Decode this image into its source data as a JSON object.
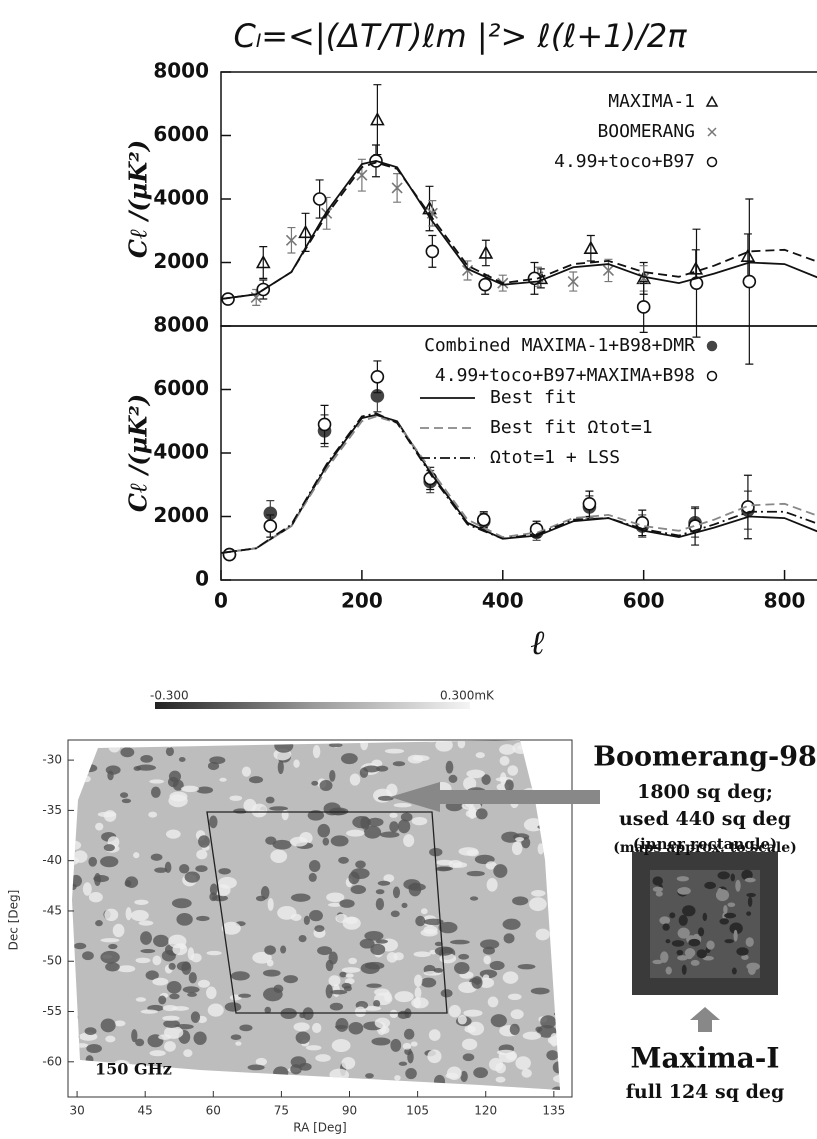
{
  "title": "Cₗ=<|(ΔT/T)ℓm |²> ℓ(ℓ+1)/2π",
  "chart_data": [
    {
      "type": "errorbar",
      "ylabel": "Cℓ /(μK²)",
      "xlim": [
        0,
        900
      ],
      "ylim": [
        0,
        8000
      ],
      "yticks": [
        2000,
        4000,
        6000,
        8000
      ],
      "legend": "upper right",
      "series": [
        {
          "name": "MAXIMA-1",
          "marker": "triangle",
          "color": "#111",
          "x": [
            60,
            120,
            222,
            296,
            376,
            454,
            525,
            600,
            674,
            748
          ],
          "values": [
            2000,
            2950,
            6500,
            3700,
            2300,
            1500,
            2450,
            1500,
            1800,
            2200
          ],
          "errors": [
            500,
            600,
            1100,
            700,
            400,
            300,
            400,
            500,
            600,
            700
          ]
        },
        {
          "name": "BOOMERANG",
          "marker": "x",
          "color": "#777",
          "x": [
            50,
            100,
            150,
            200,
            250,
            300,
            350,
            400,
            450,
            500,
            550,
            600
          ],
          "values": [
            900,
            2700,
            3550,
            4750,
            4350,
            3550,
            1750,
            1350,
            1550,
            1400,
            1750,
            1500
          ],
          "errors": [
            250,
            400,
            500,
            500,
            450,
            400,
            300,
            250,
            300,
            300,
            350,
            400
          ]
        },
        {
          "name": "4.99+toco+B97",
          "marker": "circle",
          "color": "#111",
          "x": [
            10,
            60,
            140,
            220,
            300,
            375,
            445,
            600,
            675,
            750
          ],
          "values": [
            850,
            1150,
            4000,
            5200,
            2350,
            1300,
            1500,
            600,
            1350,
            1400
          ],
          "errors": [
            150,
            300,
            600,
            500,
            500,
            300,
            500,
            800,
            1700,
            2600
          ]
        },
        {
          "line_style": "solid",
          "color": "#111",
          "x": [
            0,
            50,
            100,
            150,
            200,
            220,
            250,
            300,
            350,
            400,
            450,
            500,
            550,
            600,
            650,
            700,
            750,
            800,
            850,
            900
          ],
          "values": [
            850,
            1000,
            1700,
            3600,
            5100,
            5200,
            5000,
            3300,
            1800,
            1300,
            1400,
            1850,
            1950,
            1550,
            1350,
            1650,
            2000,
            1950,
            1500,
            1100
          ]
        },
        {
          "line_style": "dashed",
          "color": "#111",
          "x": [
            0,
            50,
            100,
            150,
            200,
            220,
            250,
            300,
            350,
            400,
            450,
            500,
            550,
            600,
            650,
            700,
            750,
            800,
            850,
            900
          ],
          "values": [
            850,
            1000,
            1700,
            3500,
            5000,
            5150,
            4950,
            3400,
            1900,
            1350,
            1500,
            1950,
            2050,
            1700,
            1550,
            1900,
            2350,
            2400,
            2000,
            1500
          ]
        }
      ]
    },
    {
      "type": "errorbar",
      "ylabel": "Cℓ /(μK²)",
      "xlabel": "ℓ",
      "xlim": [
        0,
        900
      ],
      "ylim": [
        0,
        8000
      ],
      "xticks": [
        0,
        200,
        400,
        600,
        800
      ],
      "yticks": [
        0,
        2000,
        4000,
        6000,
        8000
      ],
      "legend": "upper right",
      "series": [
        {
          "name": "Combined MAXIMA-1+B98+DMR",
          "marker": "filled-circle",
          "color": "#444",
          "x": [
            12,
            70,
            147,
            222,
            297,
            373,
            448,
            523,
            598,
            673,
            748
          ],
          "values": [
            800,
            2100,
            4700,
            5800,
            3100,
            1850,
            1500,
            2300,
            1700,
            1800,
            2200
          ],
          "errors": [
            150,
            400,
            500,
            500,
            350,
            250,
            250,
            350,
            350,
            450,
            600
          ]
        },
        {
          "name": "4.99+toco+B97+MAXIMA+B98",
          "marker": "circle",
          "color": "#111",
          "x": [
            12,
            70,
            147,
            222,
            297,
            373,
            448,
            523,
            598,
            673,
            748
          ],
          "values": [
            800,
            1700,
            4900,
            6400,
            3200,
            1900,
            1600,
            2400,
            1800,
            1700,
            2300
          ],
          "errors": [
            150,
            350,
            600,
            500,
            350,
            250,
            250,
            400,
            400,
            600,
            1000
          ]
        },
        {
          "name": "Best fit",
          "line_style": "solid",
          "color": "#111",
          "x": [
            0,
            50,
            100,
            150,
            200,
            220,
            250,
            300,
            350,
            400,
            450,
            500,
            550,
            600,
            650,
            700,
            750,
            800,
            850,
            900
          ],
          "values": [
            850,
            1000,
            1700,
            3600,
            5100,
            5200,
            5000,
            3300,
            1800,
            1300,
            1400,
            1850,
            1950,
            1550,
            1350,
            1650,
            2000,
            1950,
            1500,
            1100
          ]
        },
        {
          "name": "Best fit Ωtot=1",
          "line_style": "dashed",
          "color": "#888",
          "x": [
            0,
            50,
            100,
            150,
            200,
            220,
            250,
            300,
            350,
            400,
            450,
            500,
            550,
            600,
            650,
            700,
            750,
            800,
            850,
            900
          ],
          "values": [
            850,
            1000,
            1700,
            3500,
            5000,
            5150,
            4950,
            3400,
            1900,
            1350,
            1500,
            1950,
            2050,
            1700,
            1550,
            1900,
            2350,
            2400,
            2000,
            1500
          ]
        },
        {
          "name": "Ωtot=1 + LSS",
          "line_style": "dashdot",
          "color": "#111",
          "x": [
            0,
            50,
            100,
            150,
            200,
            220,
            250,
            300,
            350,
            400,
            450,
            500,
            550,
            600,
            650,
            700,
            750,
            800,
            850,
            900
          ],
          "values": [
            850,
            1000,
            1750,
            3650,
            5150,
            5250,
            4950,
            3250,
            1750,
            1300,
            1450,
            1900,
            1950,
            1600,
            1400,
            1750,
            2150,
            2150,
            1750,
            1300
          ]
        }
      ]
    }
  ],
  "map": {
    "colorbar_min": "-0.300",
    "colorbar_max": "0.300mK",
    "band": "150 GHz",
    "xlabel": "RA [Deg]",
    "ylabel": "Dec [Deg]",
    "xlim": [
      28,
      139
    ],
    "ylim": [
      -28,
      -63.5
    ],
    "xticks": [
      30,
      45,
      60,
      75,
      90,
      105,
      120,
      135
    ],
    "yticks": [
      -30,
      -35,
      -40,
      -45,
      -50,
      -55,
      -60
    ]
  },
  "side_text": {
    "boomerang_title": "Boomerang-98",
    "boomerang_area": "1800 sq deg;",
    "boomerang_used": "used 440 sq deg",
    "boomerang_note": "(inner rectangle)",
    "scale_note": "(maps approx. to scale)",
    "maxima_title": "Maxima-I",
    "maxima_area": "full 124 sq deg"
  }
}
